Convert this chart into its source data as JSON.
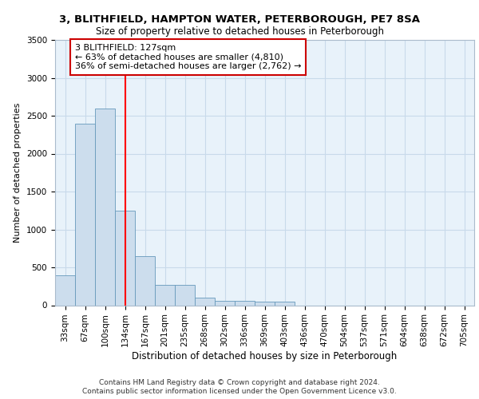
{
  "title1": "3, BLITHFIELD, HAMPTON WATER, PETERBOROUGH, PE7 8SA",
  "title2": "Size of property relative to detached houses in Peterborough",
  "xlabel": "Distribution of detached houses by size in Peterborough",
  "ylabel": "Number of detached properties",
  "categories": [
    "33sqm",
    "67sqm",
    "100sqm",
    "134sqm",
    "167sqm",
    "201sqm",
    "235sqm",
    "268sqm",
    "302sqm",
    "336sqm",
    "369sqm",
    "403sqm",
    "436sqm",
    "470sqm",
    "504sqm",
    "537sqm",
    "571sqm",
    "604sqm",
    "638sqm",
    "672sqm",
    "705sqm"
  ],
  "values": [
    400,
    2400,
    2600,
    1250,
    650,
    270,
    270,
    100,
    60,
    60,
    50,
    50,
    0,
    0,
    0,
    0,
    0,
    0,
    0,
    0,
    0
  ],
  "bar_color": "#ccdded",
  "bar_edge_color": "#6699bb",
  "grid_color": "#c8daea",
  "bg_color": "#e8f2fa",
  "red_line_x": 3.0,
  "annotation_text": "3 BLITHFIELD: 127sqm\n← 63% of detached houses are smaller (4,810)\n36% of semi-detached houses are larger (2,762) →",
  "annotation_box_color": "#ffffff",
  "annotation_box_edge": "#cc0000",
  "ylim": [
    0,
    3500
  ],
  "yticks": [
    0,
    500,
    1000,
    1500,
    2000,
    2500,
    3000,
    3500
  ],
  "footer1": "Contains HM Land Registry data © Crown copyright and database right 2024.",
  "footer2": "Contains public sector information licensed under the Open Government Licence v3.0.",
  "title1_fontsize": 9.5,
  "title2_fontsize": 8.5,
  "xlabel_fontsize": 8.5,
  "ylabel_fontsize": 8.0,
  "tick_fontsize": 7.5,
  "ann_fontsize": 8.0,
  "footer_fontsize": 6.5
}
